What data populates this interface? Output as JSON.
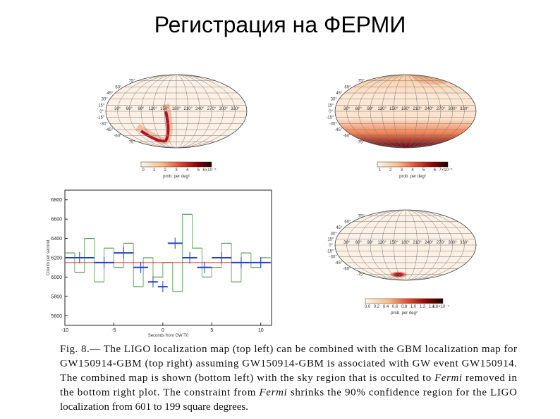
{
  "title": "Регистрация на ФЕРМИ",
  "maps": [
    {
      "lat_labels": [
        "75°",
        "60°",
        "45°",
        "30°",
        "15°",
        "0°",
        "-15°",
        "-30°",
        "-45°",
        "-60°",
        "-75°"
      ],
      "lon_labels": [
        "30°",
        "60°",
        "90°",
        "120°",
        "150°",
        "180°",
        "210°",
        "240°",
        "270°",
        "300°",
        "330°"
      ],
      "colorbar_ticks": [
        "0",
        "1",
        "2",
        "3",
        "4",
        "5",
        "6×10⁻⁵"
      ],
      "colorbar_label": "prob. per deg²"
    },
    {
      "lat_labels": [
        "75°",
        "60°",
        "45°",
        "30°",
        "15°",
        "0°",
        "-15°",
        "-30°",
        "-45°",
        "-60°",
        "-75°"
      ],
      "lon_labels": [
        "30°",
        "60°",
        "90°",
        "120°",
        "150°",
        "180°",
        "210°",
        "240°",
        "270°",
        "300°",
        "330°"
      ],
      "colorbar_ticks": [
        "1",
        "2",
        "3",
        "4",
        "5",
        "6",
        "7×10⁻⁵"
      ],
      "colorbar_label": "prob. per deg²"
    },
    {
      "lat_labels": [
        "75°",
        "60°",
        "45°",
        "30°",
        "15°",
        "0°",
        "-15°",
        "-30°",
        "-45°",
        "-60°",
        "-75°"
      ],
      "lon_labels": [
        "30°",
        "60°",
        "90°",
        "120°",
        "150°",
        "180°",
        "210°",
        "240°",
        "270°",
        "300°",
        "330°"
      ],
      "colorbar_ticks": [
        "0.0",
        "0.2",
        "0.4",
        "0.6",
        "0.8",
        "1.0",
        "1.2",
        "1.4",
        "1.6×10⁻⁴"
      ],
      "colorbar_label": "prob. per deg²"
    }
  ],
  "light_curve": {
    "y_label": "Counts per second",
    "x_label": "Seconds from GW T0",
    "ylim": [
      5500,
      6900
    ],
    "yticks": [
      5600,
      5800,
      6000,
      6200,
      6400,
      6600,
      6800
    ],
    "xlim": [
      -10,
      11.1
    ],
    "xticks": [
      -10,
      -5,
      0,
      5,
      10
    ],
    "raw_bins": [
      -10,
      -9,
      -8,
      -7,
      -6,
      -5,
      -4,
      -3,
      -2,
      -1,
      0,
      1,
      2,
      3,
      4,
      5,
      6,
      7,
      8,
      9,
      10,
      11
    ],
    "raw_values": [
      6250,
      6050,
      6400,
      5950,
      6300,
      6100,
      6350,
      5900,
      6200,
      6000,
      6150,
      5850,
      6650,
      6300,
      6000,
      6100,
      6350,
      5950,
      6250,
      6100,
      6200
    ],
    "binned_bins": [
      -10,
      -7,
      -5,
      -3,
      -1.5,
      -0.5,
      0.5,
      2,
      3.5,
      5,
      7,
      9,
      11
    ],
    "binned_values": [
      6200,
      6150,
      6250,
      6100,
      5950,
      5900,
      6350,
      6200,
      6100,
      6200,
      6150,
      6150
    ],
    "background_level": 6150
  },
  "caption": {
    "lines": [
      [
        "Fig. 8.— The LIGO localization map (top left) can be combined with the GBM localization map for"
      ],
      [
        "GW150914-GBM (top right) assuming GW150914-GBM is associated with GW event GW150914."
      ],
      [
        "The combined map is shown (bottom left) with the sky region that is occulted to ",
        "Fermi",
        " removed in"
      ],
      [
        "the bottom right plot. The constraint from ",
        "Fermi",
        " shrinks the 90% confidence region for the LIGO"
      ],
      [
        "localization from 601 to 199 square degrees."
      ]
    ]
  }
}
